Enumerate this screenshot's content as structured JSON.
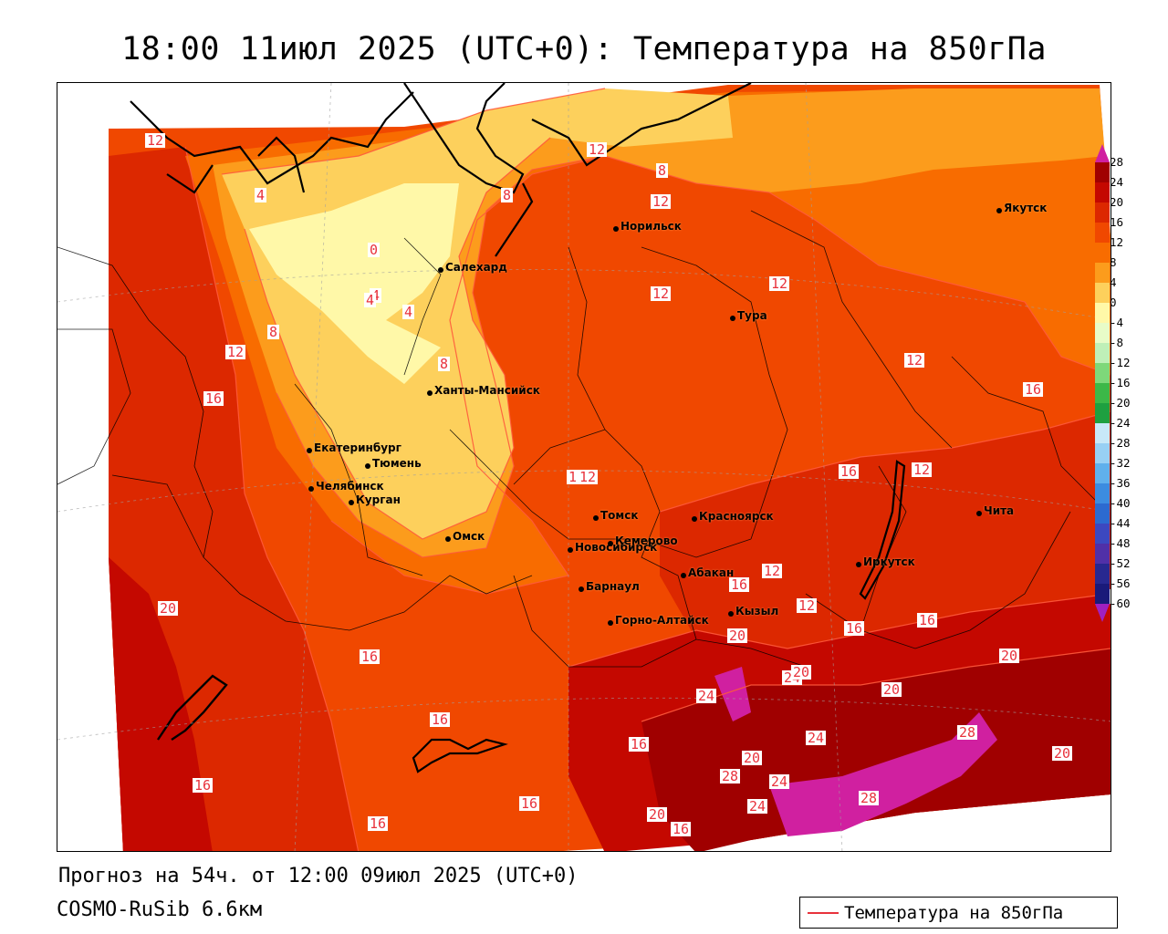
{
  "title": "18:00 11июл 2025 (UTC+0): Температура на 850гПа",
  "footer": {
    "forecast": "Прогноз на 54ч. от 12:00 09июл 2025 (UTC+0)",
    "model": "COSMO-RuSib 6.6км"
  },
  "legend": {
    "label": "Температура на 850гПа",
    "line_color": "#e8323c"
  },
  "color_scale": {
    "labels": [
      "28",
      "24",
      "20",
      "16",
      "12",
      "8",
      "4",
      "0",
      "-4",
      "-8",
      "-12",
      "-16",
      "-20",
      "-24",
      "-28",
      "-32",
      "-36",
      "-40",
      "-44",
      "-48",
      "-52",
      "-56",
      "-60"
    ],
    "colors": [
      "#a00000",
      "#c40800",
      "#dc2800",
      "#f04800",
      "#f86c00",
      "#fc9c1c",
      "#fdd05c",
      "#fff8a8",
      "#e8fcc8",
      "#bff0b8",
      "#7ed87a",
      "#3cb848",
      "#1ea040",
      "#c8e8f8",
      "#98d0f4",
      "#60b0ec",
      "#3c8ce0",
      "#2c6ad0",
      "#3c48c0",
      "#5030a8",
      "#282890",
      "#1a1a7a"
    ],
    "top_arrow_color": "#d020a0",
    "bottom_arrow_color": "#a020c0"
  },
  "cities": [
    {
      "name": "Якутск"
    },
    {
      "name": "Норильск"
    },
    {
      "name": "Салехард"
    },
    {
      "name": "Тура"
    },
    {
      "name": "Ханты-Мансийск"
    },
    {
      "name": "Екатеринбург"
    },
    {
      "name": "Тюмень"
    },
    {
      "name": "Челябинск"
    },
    {
      "name": "Курган"
    },
    {
      "name": "Омск"
    },
    {
      "name": "Новосибирск"
    },
    {
      "name": "Томск"
    },
    {
      "name": "Кемерово"
    },
    {
      "name": "Красноярск"
    },
    {
      "name": "Барнаул"
    },
    {
      "name": "Абакан"
    },
    {
      "name": "Горно-Алтайск"
    },
    {
      "name": "Кызыл"
    },
    {
      "name": "Иркутск"
    },
    {
      "name": "Чита"
    }
  ],
  "isotherm_labels": [
    {
      "text": "12"
    },
    {
      "text": "4"
    },
    {
      "text": "8"
    },
    {
      "text": "12"
    },
    {
      "text": "8"
    },
    {
      "text": "4"
    },
    {
      "text": "0"
    },
    {
      "text": "4"
    },
    {
      "text": "4"
    },
    {
      "text": "8"
    },
    {
      "text": "12"
    },
    {
      "text": "12"
    },
    {
      "text": "12"
    },
    {
      "text": "8"
    },
    {
      "text": "16"
    },
    {
      "text": "12"
    },
    {
      "text": "12"
    },
    {
      "text": "16"
    },
    {
      "text": "16"
    },
    {
      "text": "12"
    },
    {
      "text": "16"
    },
    {
      "text": "12"
    },
    {
      "text": "12"
    },
    {
      "text": "12"
    },
    {
      "text": "16"
    },
    {
      "text": "20"
    },
    {
      "text": "16"
    },
    {
      "text": "16"
    },
    {
      "text": "16"
    },
    {
      "text": "16"
    },
    {
      "text": "16"
    },
    {
      "text": "20"
    },
    {
      "text": "24"
    },
    {
      "text": "24"
    },
    {
      "text": "20"
    },
    {
      "text": "24"
    },
    {
      "text": "28"
    },
    {
      "text": "20"
    },
    {
      "text": "20"
    },
    {
      "text": "16"
    },
    {
      "text": "20"
    },
    {
      "text": "16"
    },
    {
      "text": "16"
    },
    {
      "text": "20"
    },
    {
      "text": "16"
    },
    {
      "text": "28"
    },
    {
      "text": "24"
    },
    {
      "text": "24"
    },
    {
      "text": "28"
    },
    {
      "text": "20"
    },
    {
      "text": "1"
    }
  ]
}
